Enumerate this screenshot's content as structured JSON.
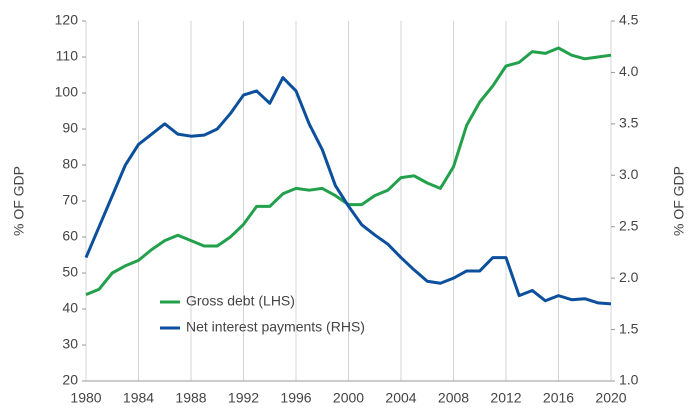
{
  "chart_data": {
    "type": "line",
    "x": [
      1980,
      1981,
      1982,
      1983,
      1984,
      1985,
      1986,
      1987,
      1988,
      1989,
      1990,
      1991,
      1992,
      1993,
      1994,
      1995,
      1996,
      1997,
      1998,
      1999,
      2000,
      2001,
      2002,
      2003,
      2004,
      2005,
      2006,
      2007,
      2008,
      2009,
      2010,
      2011,
      2012,
      2013,
      2014,
      2015,
      2016,
      2017,
      2018,
      2019,
      2020
    ],
    "series": [
      {
        "name": "Gross debt (LHS)",
        "color": "#22a04b",
        "axis": "y",
        "values": [
          44,
          45.5,
          50,
          52,
          53.5,
          56.5,
          59,
          60.5,
          59,
          57.5,
          57.5,
          60,
          63.5,
          68.5,
          68.5,
          72,
          73.5,
          73,
          73.5,
          71.5,
          69,
          69,
          71.5,
          73,
          76.5,
          77,
          75,
          73.5,
          79.5,
          91,
          97.5,
          102,
          107.5,
          108.5,
          111.5,
          111,
          112.5,
          110.5,
          109.5,
          110,
          110.5
        ]
      },
      {
        "name": "Net interest payments (RHS)",
        "color": "#0c4f9c",
        "axis": "y2",
        "values": [
          2.2,
          2.5,
          2.8,
          3.1,
          3.3,
          3.4,
          3.5,
          3.4,
          3.38,
          3.39,
          3.45,
          3.6,
          3.78,
          3.82,
          3.7,
          3.95,
          3.82,
          3.5,
          3.25,
          2.9,
          2.7,
          2.52,
          2.42,
          2.33,
          2.2,
          2.08,
          1.97,
          1.95,
          2.0,
          2.07,
          2.07,
          2.2,
          2.2,
          1.83,
          1.88,
          1.78,
          1.83,
          1.79,
          1.8,
          1.76,
          1.75
        ]
      }
    ],
    "xlim": [
      1980,
      2020
    ],
    "xticks": [
      1980,
      1984,
      1988,
      1992,
      1996,
      2000,
      2004,
      2008,
      2012,
      2016,
      2020
    ],
    "ylim": [
      20,
      120
    ],
    "yticks": [
      20,
      30,
      40,
      50,
      60,
      70,
      80,
      90,
      100,
      110,
      120
    ],
    "y2lim": [
      1.0,
      4.5
    ],
    "y2ticks": [
      {
        "value": 1.0,
        "label": "1.0"
      },
      1.5,
      {
        "value": 2.0,
        "label": "2.0"
      },
      2.5,
      {
        "value": 3.0,
        "label": "3.0"
      },
      3.5,
      {
        "value": 4.0,
        "label": "4.0"
      },
      4.5
    ],
    "ylabel": "% OF GDP",
    "y2label": "% OF GDP",
    "grid": "x",
    "legend": "lower-left"
  }
}
